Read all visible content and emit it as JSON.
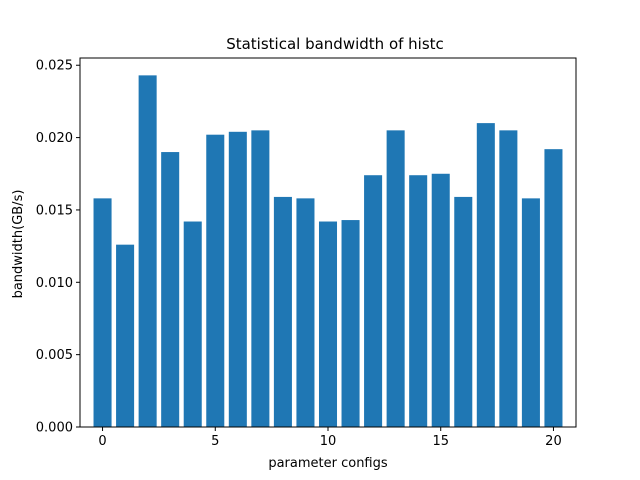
{
  "chart_data": {
    "type": "bar",
    "title": "Statistical bandwidth of histc",
    "xlabel": "parameter configs",
    "ylabel": "bandwidth(GB/s)",
    "categories": [
      0,
      1,
      2,
      3,
      4,
      5,
      6,
      7,
      8,
      9,
      10,
      11,
      12,
      13,
      14,
      15,
      16,
      17,
      18,
      19,
      20
    ],
    "values": [
      0.0158,
      0.0126,
      0.0243,
      0.019,
      0.0142,
      0.0202,
      0.0204,
      0.0205,
      0.0159,
      0.0158,
      0.0142,
      0.0143,
      0.0174,
      0.0205,
      0.0174,
      0.0175,
      0.0159,
      0.021,
      0.0205,
      0.0158,
      0.0192
    ],
    "xlim": [
      -1.0,
      21.0
    ],
    "ylim": [
      0,
      0.0255
    ],
    "xticks": [
      0,
      5,
      10,
      15,
      20
    ],
    "yticks": [
      0.0,
      0.005,
      0.01,
      0.015,
      0.02,
      0.025
    ],
    "ytick_labels": [
      "0.000",
      "0.005",
      "0.010",
      "0.015",
      "0.020",
      "0.025"
    ],
    "bar_color": "#1f77b4",
    "grid": false,
    "legend": "none"
  }
}
